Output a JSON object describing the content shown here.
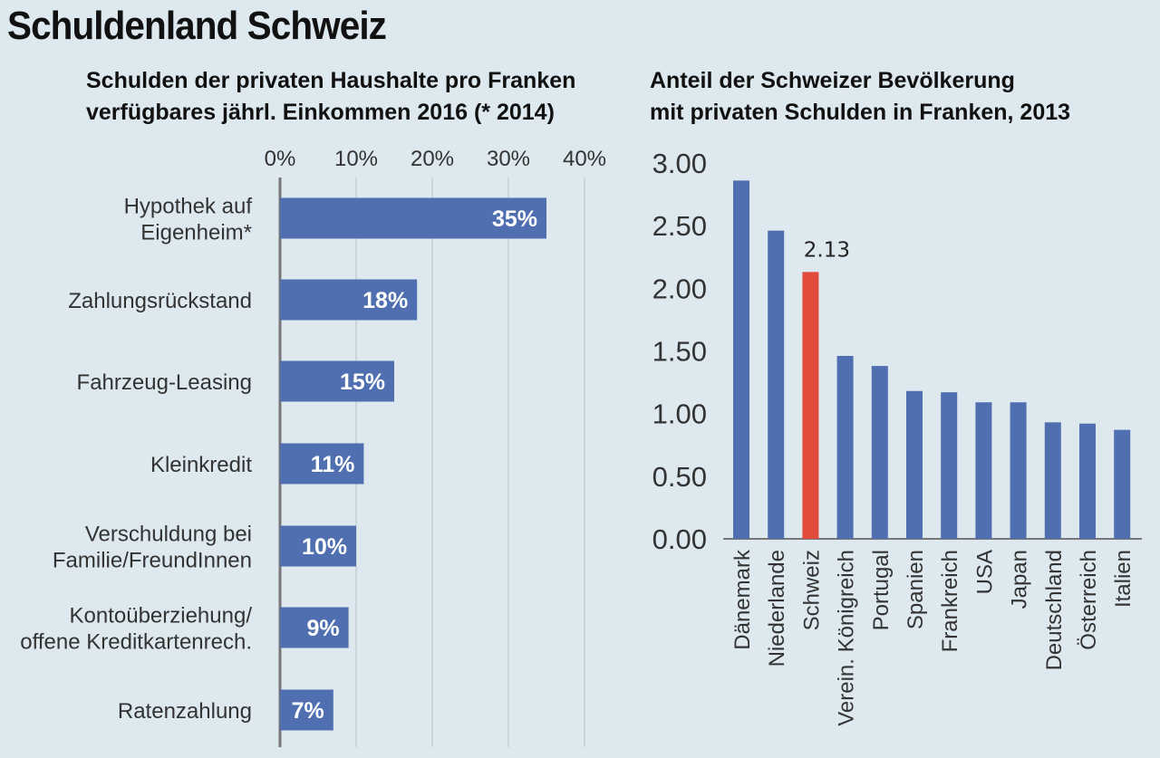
{
  "title": "Schuldenland Schweiz",
  "colors": {
    "background": "#dde9ee",
    "bar": "#4f6fb0",
    "highlight": "#e24a3b",
    "axis": "#777777",
    "grid": "#c4cfd4"
  },
  "chart_data": [
    {
      "type": "bar",
      "orientation": "horizontal",
      "title_lines": [
        "Schulden der privaten Haushalte pro Franken",
        "verfügbares jährl. Einkommen 2016 (* 2014)"
      ],
      "categories": [
        [
          "Hypothek auf",
          "Eigenheim*"
        ],
        [
          "Zahlungsrückstand"
        ],
        [
          "Fahrzeug-Leasing"
        ],
        [
          "Kleinkredit"
        ],
        [
          "Verschuldung bei",
          "Familie/FreundInnen"
        ],
        [
          "Kontoüberziehung/",
          "offene Kreditkartenrech."
        ],
        [
          "Ratenzahlung"
        ]
      ],
      "values": [
        35,
        18,
        15,
        11,
        10,
        9,
        7
      ],
      "data_labels": [
        "35%",
        "18%",
        "15%",
        "11%",
        "10%",
        "9%",
        "7%"
      ],
      "xlim": [
        0,
        40
      ],
      "ticks": [
        0,
        10,
        20,
        30,
        40
      ],
      "tick_labels": [
        "0%",
        "10%",
        "20%",
        "30%",
        "40%"
      ],
      "axis_position": "top",
      "grid": true
    },
    {
      "type": "bar",
      "orientation": "vertical",
      "title_lines": [
        "Anteil der Schweizer Bevölkerung",
        "mit privaten Schulden in Franken, 2013"
      ],
      "categories": [
        "Dänemark",
        "Niederlande",
        "Schweiz",
        "Verein. Königreich",
        "Portugal",
        "Spanien",
        "Frankreich",
        "USA",
        "Japan",
        "Deutschland",
        "Österreich",
        "Italien"
      ],
      "values": [
        2.86,
        2.46,
        2.13,
        1.46,
        1.38,
        1.18,
        1.17,
        1.09,
        1.09,
        0.93,
        0.92,
        0.87
      ],
      "highlight_index": 2,
      "annotation": "2.13",
      "ylim": [
        0,
        3
      ],
      "ticks": [
        0,
        0.5,
        1,
        1.5,
        2,
        2.5,
        3
      ],
      "tick_labels": [
        "0.00",
        "0.50",
        "1.00",
        "1.50",
        "2.00",
        "2.50",
        "3.00"
      ],
      "grid": false
    }
  ]
}
